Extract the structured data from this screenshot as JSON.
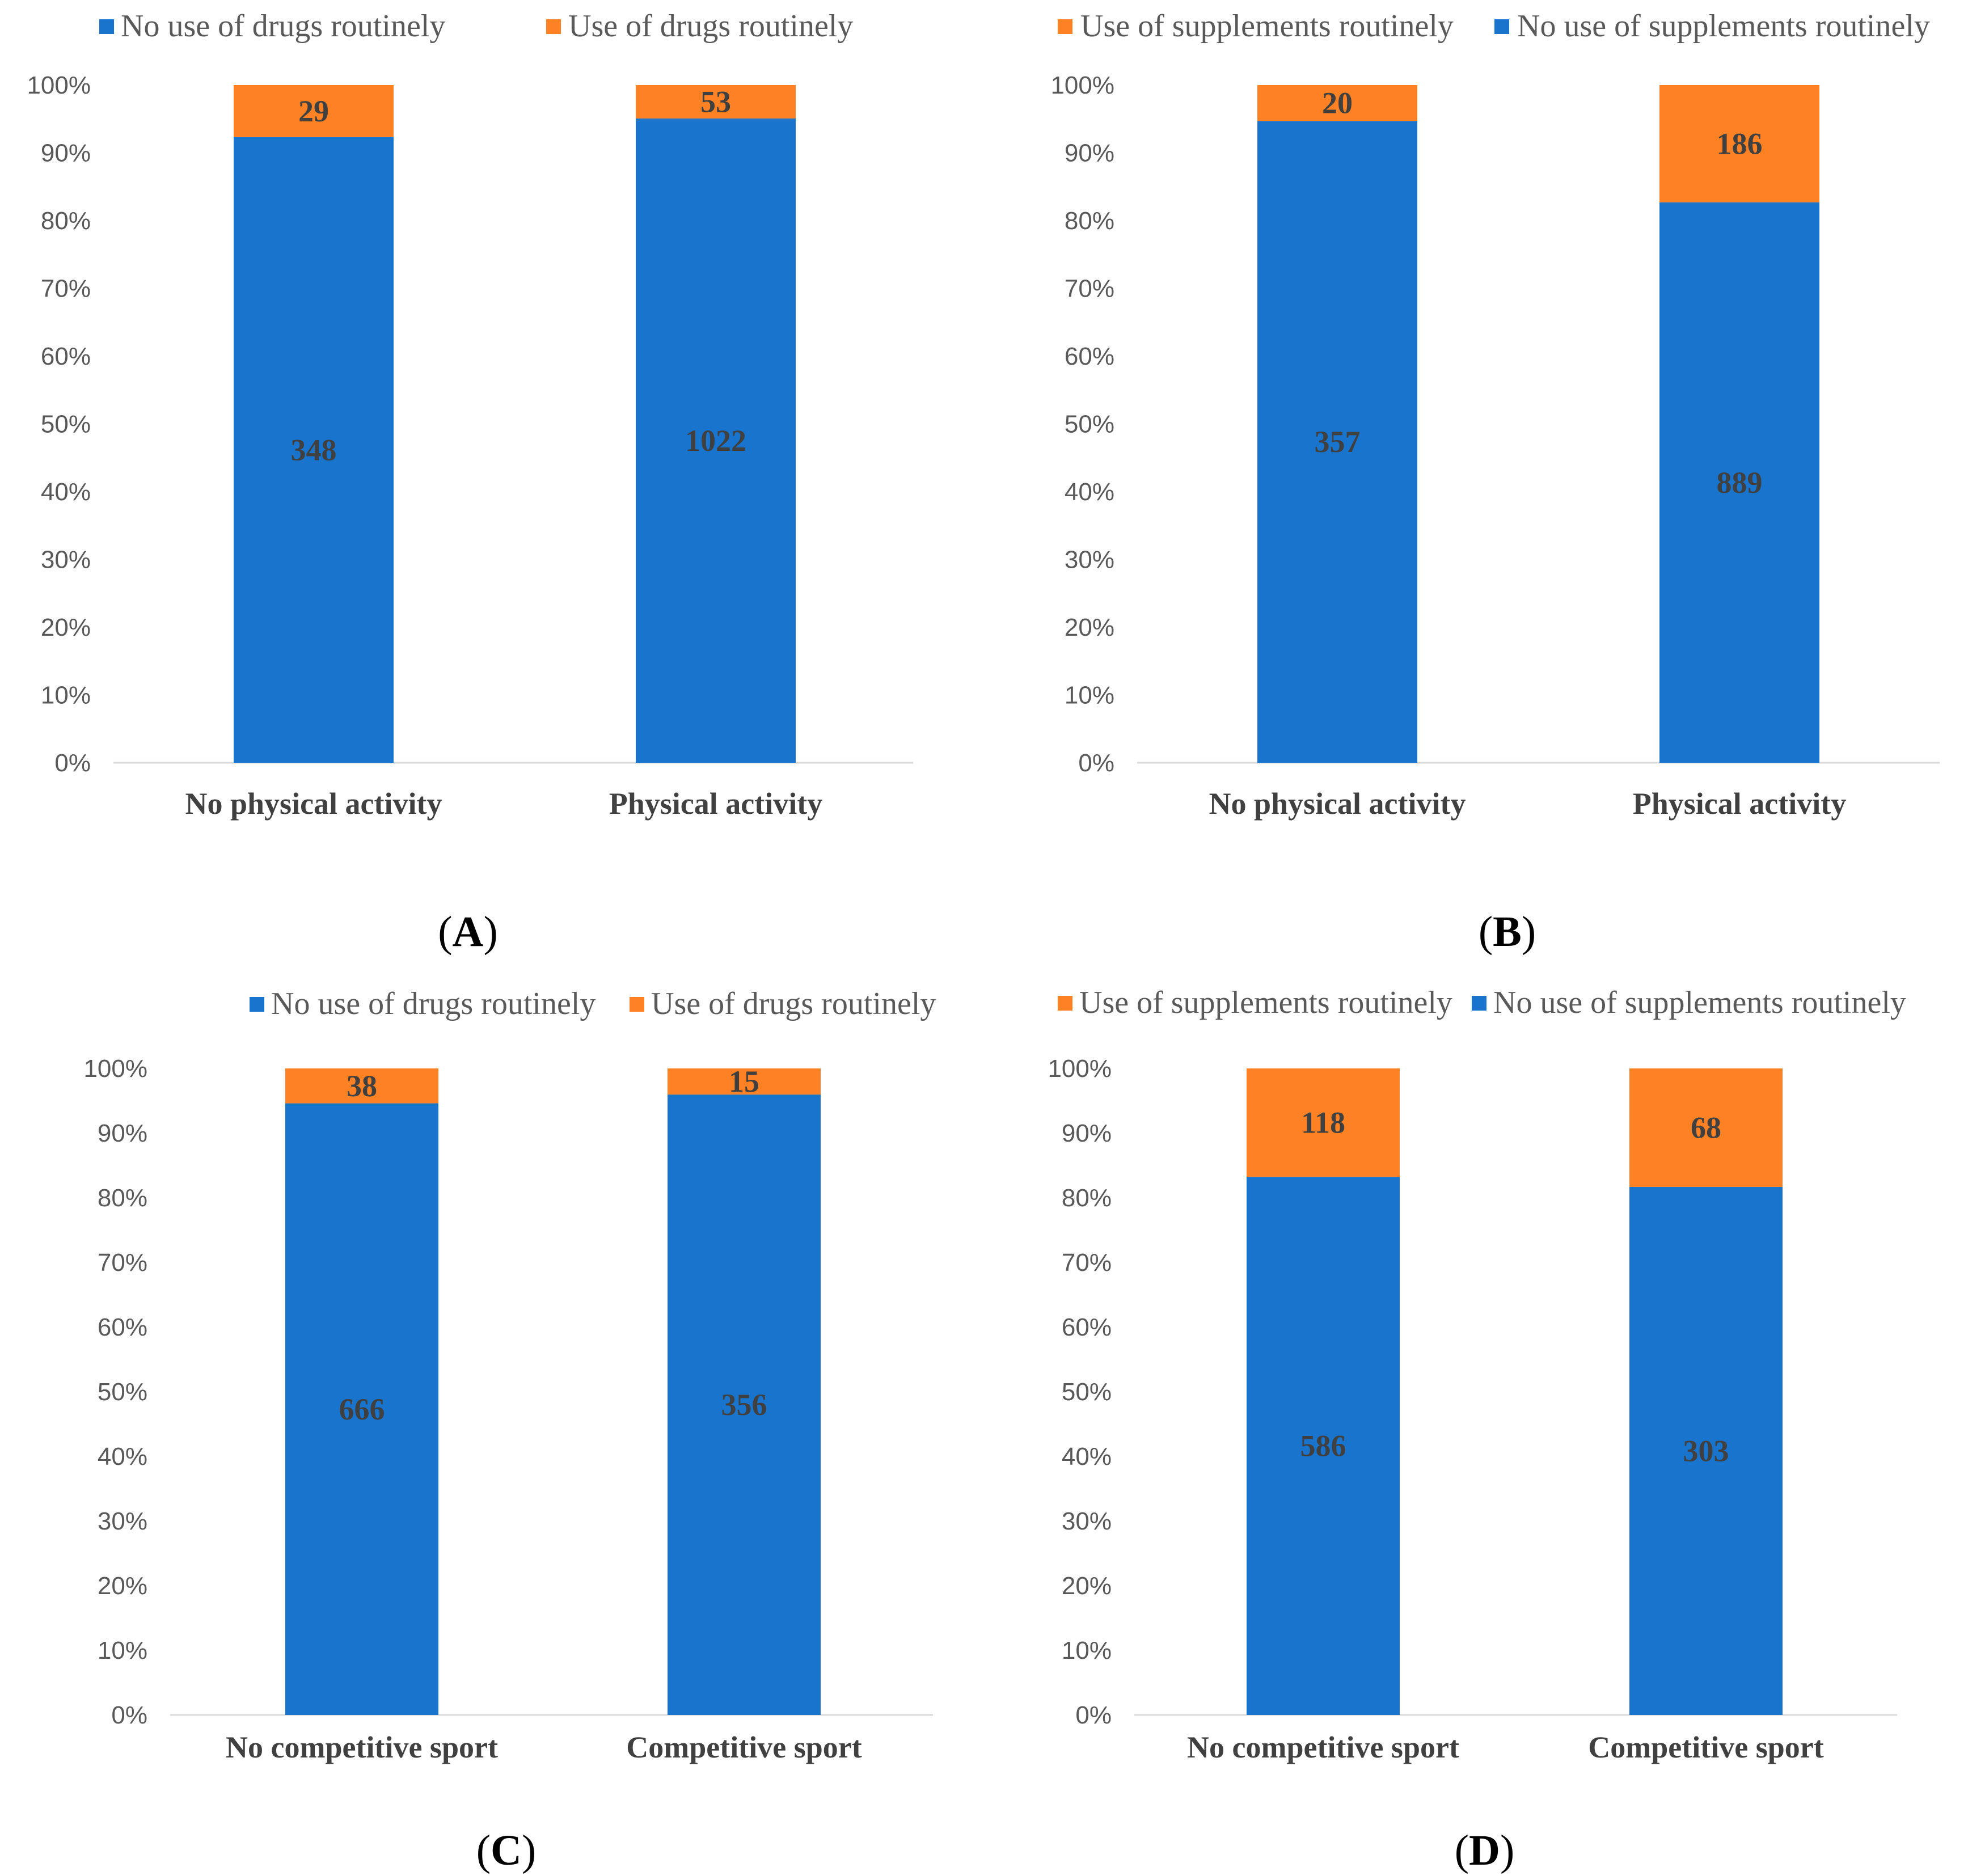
{
  "colors": {
    "blue": "#1874cd",
    "orange": "#fe8224",
    "axis": "#d9d9d9"
  },
  "chart_data": [
    {
      "type": "bar",
      "stacked": "percent",
      "panel_label": "A",
      "categories": [
        "No physical activity",
        "Physical activity"
      ],
      "legend": [
        "No use of drugs routinely",
        "Use of drugs routinely"
      ],
      "legend_placement": "top",
      "stack_order": [
        "No use of drugs routinely",
        "Use of drugs routinely"
      ],
      "series": [
        {
          "name": "No use of drugs routinely",
          "color": "blue",
          "values": [
            348,
            1022
          ]
        },
        {
          "name": "Use of drugs routinely",
          "color": "orange",
          "values": [
            29,
            53
          ]
        }
      ],
      "y_ticks": [
        "0%",
        "10%",
        "20%",
        "30%",
        "40%",
        "50%",
        "60%",
        "70%",
        "80%",
        "90%",
        "100%"
      ],
      "ylim": [
        0,
        100
      ],
      "grid": false
    },
    {
      "type": "bar",
      "stacked": "percent",
      "panel_label": "B",
      "categories": [
        "No physical activity",
        "Physical activity"
      ],
      "legend": [
        "Use of supplements routinely",
        "No use of supplements routinely"
      ],
      "legend_placement": "top",
      "stack_order": [
        "No use of supplements routinely",
        "Use of supplements routinely"
      ],
      "series": [
        {
          "name": "Use of supplements routinely",
          "color": "orange",
          "values": [
            20,
            186
          ]
        },
        {
          "name": "No use of supplements routinely",
          "color": "blue",
          "values": [
            357,
            889
          ]
        }
      ],
      "y_ticks": [
        "0%",
        "10%",
        "20%",
        "30%",
        "40%",
        "50%",
        "60%",
        "70%",
        "80%",
        "90%",
        "100%"
      ],
      "ylim": [
        0,
        100
      ],
      "grid": false
    },
    {
      "type": "bar",
      "stacked": "percent",
      "panel_label": "C",
      "categories": [
        "No competitive sport",
        "Competitive sport"
      ],
      "legend": [
        "No use of drugs routinely",
        "Use of drugs routinely"
      ],
      "legend_placement": "top",
      "stack_order": [
        "No use of drugs routinely",
        "Use of drugs routinely"
      ],
      "series": [
        {
          "name": "No use of drugs routinely",
          "color": "blue",
          "values": [
            666,
            356
          ]
        },
        {
          "name": "Use of drugs routinely",
          "color": "orange",
          "values": [
            38,
            15
          ]
        }
      ],
      "y_ticks": [
        "0%",
        "10%",
        "20%",
        "30%",
        "40%",
        "50%",
        "60%",
        "70%",
        "80%",
        "90%",
        "100%"
      ],
      "ylim": [
        0,
        100
      ],
      "grid": false
    },
    {
      "type": "bar",
      "stacked": "percent",
      "panel_label": "D",
      "categories": [
        "No competitive sport",
        "Competitive sport"
      ],
      "legend": [
        "Use of supplements routinely",
        "No use of supplements routinely"
      ],
      "legend_placement": "top",
      "stack_order": [
        "No use of supplements routinely",
        "Use of supplements routinely"
      ],
      "series": [
        {
          "name": "Use of supplements routinely",
          "color": "orange",
          "values": [
            118,
            68
          ]
        },
        {
          "name": "No use of supplements routinely",
          "color": "blue",
          "values": [
            586,
            303
          ]
        }
      ],
      "y_ticks": [
        "0%",
        "10%",
        "20%",
        "30%",
        "40%",
        "50%",
        "60%",
        "70%",
        "80%",
        "90%",
        "100%"
      ],
      "ylim": [
        0,
        100
      ],
      "grid": false
    }
  ]
}
